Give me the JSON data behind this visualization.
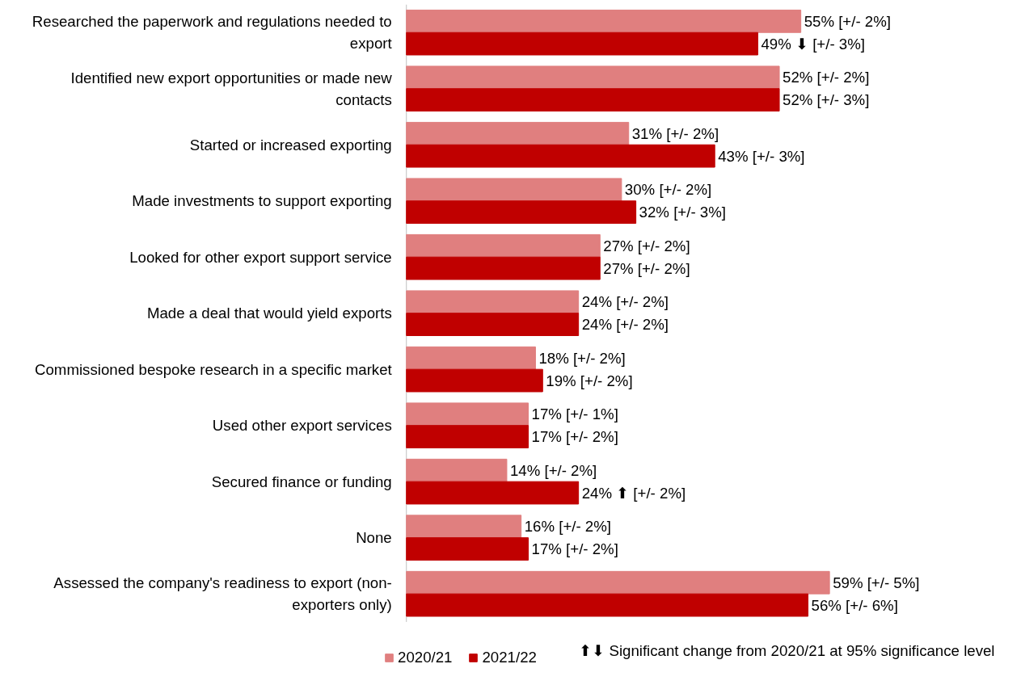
{
  "chart_data": {
    "type": "bar",
    "orientation": "horizontal",
    "categories": [
      "Researched the paperwork and regulations needed to export",
      "Identified new export opportunities or made new contacts",
      "Started or increased exporting",
      "Made investments to support exporting",
      "Looked for other export support service",
      "Made a deal that would yield exports",
      "Commissioned bespoke research in a specific market",
      "Used other export services",
      "Secured finance or funding",
      "None",
      "Assessed the company's readiness to export (non-exporters only)"
    ],
    "series": [
      {
        "name": "2020/21",
        "color": "#e07f7f",
        "values": [
          55,
          52,
          31,
          30,
          27,
          24,
          18,
          17,
          14,
          16,
          59
        ],
        "value_labels": [
          "55%  [+/- 2%]",
          "52%   [+/- 2%]",
          "31%       [+/- 2%]",
          "30%    [+/- 2%]",
          "27% [+/- 2%]",
          "24%  [+/- 2%]",
          "18%   [+/- 2%]",
          "17%  [+/- 1%]",
          "14%    [+/- 2%]",
          "16%     [+/- 2%]",
          "59%      [+/- 5%]"
        ]
      },
      {
        "name": "2021/22",
        "color": "#c00000",
        "values": [
          49,
          52,
          43,
          32,
          27,
          24,
          19,
          17,
          24,
          17,
          56
        ],
        "value_labels": [
          "49% ⬇  [+/- 3%]",
          "52%  [+/- 3%]",
          "43% [+/- 3%]",
          "32% [+/- 3%]",
          "27%     [+/- 2%]",
          "24%  [+/- 2%]",
          "19% [+/- 2%]",
          "17%    [+/- 2%]",
          "24% ⬆ [+/- 2%]",
          "17% [+/- 2%]",
          "56%      [+/- 6%]"
        ]
      }
    ],
    "legend": "bottom",
    "annotations": [
      "⬆⬇ Significant change from 2020/21 at 95% significance level"
    ]
  }
}
